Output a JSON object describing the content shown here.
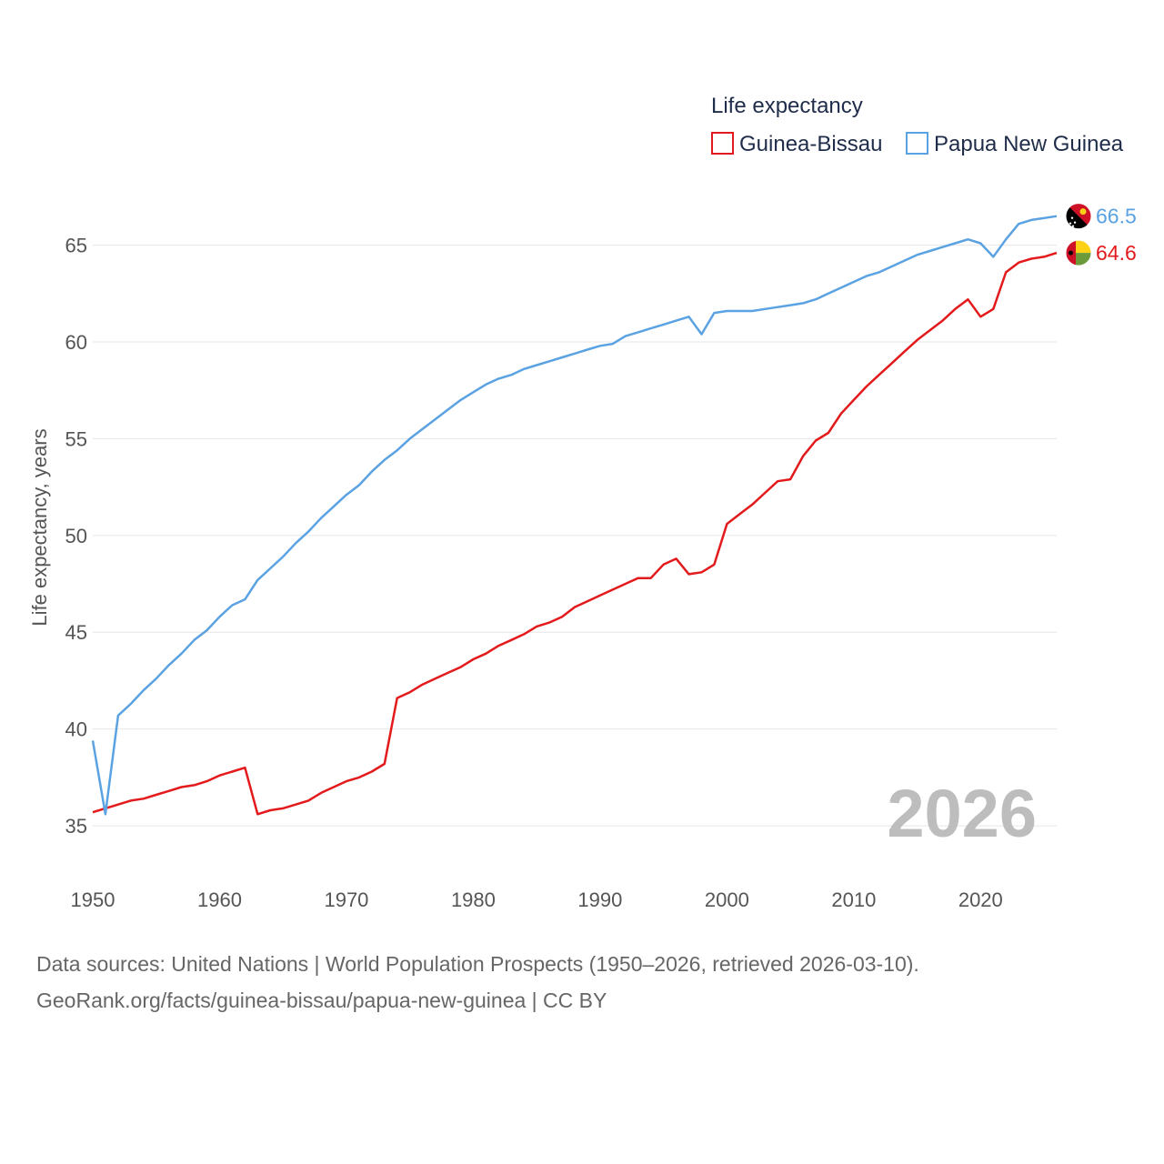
{
  "chart_data": {
    "type": "line",
    "legend_title": "Life expectancy",
    "legend_position": "top-right",
    "ylabel": "Life expectancy, years",
    "xlabel": "",
    "xlim": [
      1950,
      2026
    ],
    "ylim": [
      33.5,
      67.8
    ],
    "x_ticks": [
      1950,
      1960,
      1970,
      1980,
      1990,
      2000,
      2010,
      2020
    ],
    "y_ticks": [
      35,
      40,
      45,
      50,
      55,
      60,
      65
    ],
    "grid": true,
    "year_watermark": "2026",
    "x": [
      1950,
      1951,
      1952,
      1953,
      1954,
      1955,
      1956,
      1957,
      1958,
      1959,
      1960,
      1961,
      1962,
      1963,
      1964,
      1965,
      1966,
      1967,
      1968,
      1969,
      1970,
      1971,
      1972,
      1973,
      1974,
      1975,
      1976,
      1977,
      1978,
      1979,
      1980,
      1981,
      1982,
      1983,
      1984,
      1985,
      1986,
      1987,
      1988,
      1989,
      1990,
      1991,
      1992,
      1993,
      1994,
      1995,
      1996,
      1997,
      1998,
      1999,
      2000,
      2001,
      2002,
      2003,
      2004,
      2005,
      2006,
      2007,
      2008,
      2009,
      2010,
      2011,
      2012,
      2013,
      2014,
      2015,
      2016,
      2017,
      2018,
      2019,
      2020,
      2021,
      2022,
      2023,
      2024,
      2025,
      2026
    ],
    "series": [
      {
        "name": "Guinea-Bissau",
        "color": "#e31a1c",
        "end_label": "64.6",
        "flag": "guinea-bissau-flag-icon",
        "values": [
          35.7,
          35.9,
          36.1,
          36.3,
          36.4,
          36.6,
          36.8,
          37.0,
          37.1,
          37.3,
          37.6,
          37.8,
          38.0,
          35.6,
          35.8,
          35.9,
          36.1,
          36.3,
          36.7,
          37.0,
          37.3,
          37.5,
          37.8,
          38.2,
          41.6,
          41.9,
          42.3,
          42.6,
          42.9,
          43.2,
          43.6,
          43.9,
          44.3,
          44.6,
          44.9,
          45.3,
          45.5,
          45.8,
          46.3,
          46.6,
          46.9,
          47.2,
          47.5,
          47.8,
          47.8,
          48.5,
          48.8,
          48.0,
          48.1,
          48.5,
          50.6,
          51.1,
          51.6,
          52.2,
          52.8,
          52.9,
          54.1,
          54.9,
          55.3,
          56.3,
          57.0,
          57.7,
          58.3,
          58.9,
          59.5,
          60.1,
          60.6,
          61.1,
          61.7,
          62.2,
          61.3,
          61.7,
          63.6,
          64.1,
          64.3,
          64.4,
          64.6
        ]
      },
      {
        "name": "Papua New Guinea",
        "color": "#5aa2e2",
        "end_label": "66.5",
        "flag": "papua-new-guinea-flag-icon",
        "values": [
          39.4,
          35.6,
          40.7,
          41.3,
          42.0,
          42.6,
          43.3,
          43.9,
          44.6,
          45.1,
          45.8,
          46.4,
          46.7,
          47.7,
          48.3,
          48.9,
          49.6,
          50.2,
          50.9,
          51.5,
          52.1,
          52.6,
          53.3,
          53.9,
          54.4,
          55.0,
          55.5,
          56.0,
          56.5,
          57.0,
          57.4,
          57.8,
          58.1,
          58.3,
          58.6,
          58.8,
          59.0,
          59.2,
          59.4,
          59.6,
          59.8,
          59.9,
          60.3,
          60.5,
          60.7,
          60.9,
          61.1,
          61.3,
          60.4,
          61.5,
          61.6,
          61.6,
          61.6,
          61.7,
          61.8,
          61.9,
          62.0,
          62.2,
          62.5,
          62.8,
          63.1,
          63.4,
          63.6,
          63.9,
          64.2,
          64.5,
          64.7,
          64.9,
          65.1,
          65.3,
          65.1,
          64.4,
          65.3,
          66.1,
          66.3,
          66.4,
          66.5
        ]
      }
    ]
  },
  "footer": {
    "line1": "Data sources: United Nations | World Population Prospects (1950–2026, retrieved 2026-03-10).",
    "line2": "GeoRank.org/facts/guinea-bissau/papua-new-guinea | CC BY"
  }
}
